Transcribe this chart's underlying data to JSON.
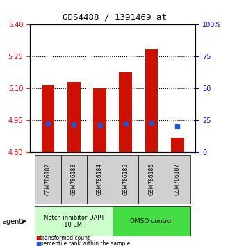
{
  "title": "GDS4488 / 1391469_at",
  "samples": [
    "GSM786182",
    "GSM786183",
    "GSM786184",
    "GSM786185",
    "GSM786186",
    "GSM786187"
  ],
  "bar_bottoms": [
    4.8,
    4.8,
    4.8,
    4.8,
    4.8,
    4.8
  ],
  "bar_tops": [
    5.115,
    5.13,
    5.1,
    5.175,
    5.285,
    4.87
  ],
  "percentile_values": [
    4.935,
    4.932,
    4.93,
    4.936,
    4.937,
    4.922
  ],
  "ylim": [
    4.8,
    5.4
  ],
  "yticks_left": [
    4.8,
    4.95,
    5.1,
    5.25,
    5.4
  ],
  "yticks_right": [
    0,
    25,
    50,
    75,
    100
  ],
  "bar_color": "#cc1100",
  "percentile_color": "#2255cc",
  "group1_label": "Notch inhibitor DAPT\n(10 μM.)",
  "group2_label": "DMSO control",
  "group1_color": "#ccffcc",
  "group2_color": "#44dd44",
  "agent_label": "agent",
  "legend_red": "transformed count",
  "legend_blue": "percentile rank within the sample",
  "bar_width": 0.5
}
